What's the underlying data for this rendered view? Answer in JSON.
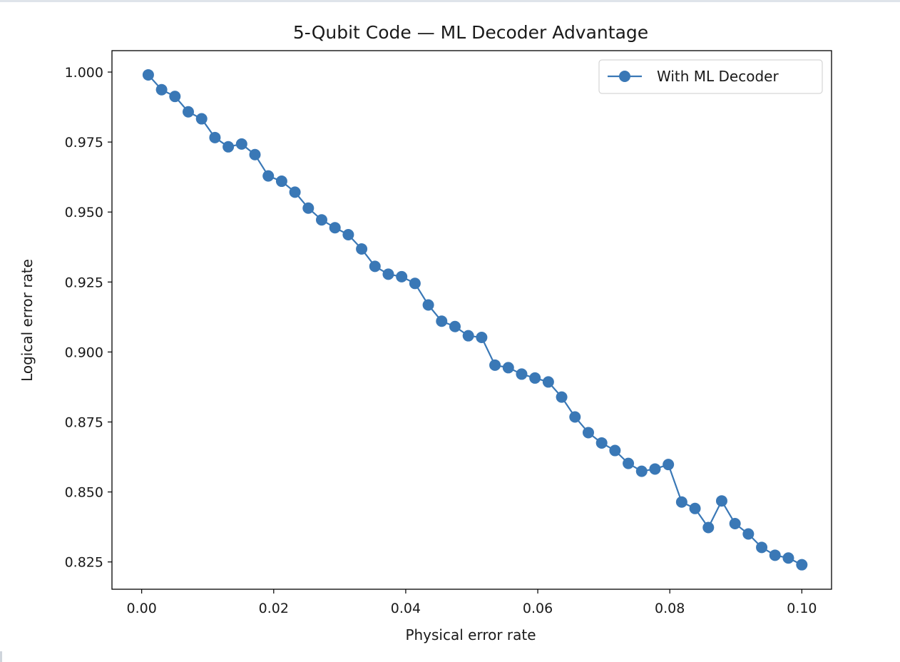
{
  "chart_data": {
    "type": "line",
    "title": "5-Qubit Code — ML Decoder Advantage",
    "xlabel": "Physical error rate",
    "ylabel": "Logical error rate",
    "xlim": [
      -0.0045,
      0.1045
    ],
    "ylim": [
      0.81525,
      1.00765
    ],
    "xticks": [
      0.0,
      0.02,
      0.04,
      0.06,
      0.08,
      0.1
    ],
    "xtick_labels": [
      "0.00",
      "0.02",
      "0.04",
      "0.06",
      "0.08",
      "0.10"
    ],
    "yticks": [
      0.825,
      0.85,
      0.875,
      0.9,
      0.925,
      0.95,
      0.975,
      1.0
    ],
    "ytick_labels": [
      "0.825",
      "0.850",
      "0.875",
      "0.900",
      "0.925",
      "0.950",
      "0.975",
      "1.000"
    ],
    "grid": false,
    "legend": "upper right",
    "series": [
      {
        "name": "With ML Decoder",
        "color": "#3a78b6",
        "marker": "circle",
        "x": [
          0.001,
          0.00302,
          0.00504,
          0.00706,
          0.00908,
          0.0111,
          0.01312,
          0.01514,
          0.01716,
          0.01918,
          0.0212,
          0.02322,
          0.02524,
          0.02726,
          0.02928,
          0.0313,
          0.03332,
          0.03534,
          0.03736,
          0.03938,
          0.0414,
          0.04342,
          0.04544,
          0.04746,
          0.04948,
          0.0515,
          0.05352,
          0.05554,
          0.05756,
          0.05958,
          0.0616,
          0.06362,
          0.06564,
          0.06766,
          0.06968,
          0.0717,
          0.07372,
          0.07574,
          0.07776,
          0.07978,
          0.0818,
          0.08382,
          0.08584,
          0.08786,
          0.08988,
          0.0919,
          0.09392,
          0.09594,
          0.09796,
          0.1
        ],
        "y": [
          0.999,
          0.9937,
          0.9913,
          0.9858,
          0.9833,
          0.9766,
          0.9733,
          0.9743,
          0.9705,
          0.9629,
          0.961,
          0.9571,
          0.9514,
          0.9472,
          0.9444,
          0.9419,
          0.9368,
          0.9306,
          0.9278,
          0.9269,
          0.9245,
          0.9168,
          0.911,
          0.9091,
          0.9058,
          0.9052,
          0.8953,
          0.8944,
          0.8921,
          0.8907,
          0.8893,
          0.8839,
          0.8768,
          0.8712,
          0.8675,
          0.8648,
          0.8602,
          0.8574,
          0.8582,
          0.8598,
          0.8464,
          0.8441,
          0.8373,
          0.8468,
          0.8387,
          0.835,
          0.8302,
          0.8274,
          0.8264,
          0.824
        ]
      }
    ]
  }
}
